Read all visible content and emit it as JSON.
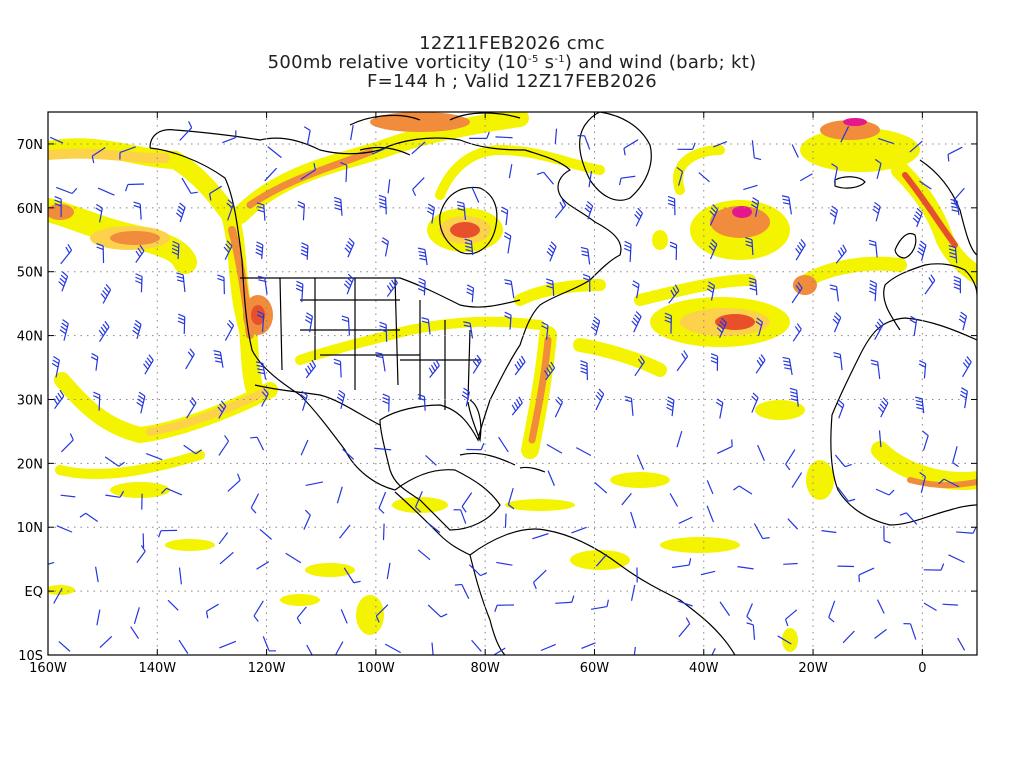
{
  "title": {
    "line1": "12Z11FEB2026 cmc",
    "line2_pre": "500mb relative vorticity (10",
    "line2_exp1": "-5",
    "line2_mid": " s",
    "line2_exp2": "-1",
    "line2_post": ") and wind (barb; kt)",
    "line3": "F=144 h ; Valid 12Z17FEB2026"
  },
  "map": {
    "lon_range": [
      -160,
      10
    ],
    "lat_range": [
      -10,
      75
    ],
    "lat_ticks": [
      {
        "value": 70,
        "label": "70N"
      },
      {
        "value": 60,
        "label": "60N"
      },
      {
        "value": 50,
        "label": "50N"
      },
      {
        "value": 40,
        "label": "40N"
      },
      {
        "value": 30,
        "label": "30N"
      },
      {
        "value": 20,
        "label": "20N"
      },
      {
        "value": 10,
        "label": "10N"
      },
      {
        "value": 0,
        "label": "EQ"
      },
      {
        "value": -10,
        "label": "10S"
      }
    ],
    "lon_ticks": [
      {
        "value": -160,
        "label": "160W"
      },
      {
        "value": -140,
        "label": "140W"
      },
      {
        "value": -120,
        "label": "120W"
      },
      {
        "value": -100,
        "label": "100W"
      },
      {
        "value": -80,
        "label": "80W"
      },
      {
        "value": -60,
        "label": "60W"
      },
      {
        "value": -40,
        "label": "40W"
      },
      {
        "value": -20,
        "label": "20W"
      },
      {
        "value": 0,
        "label": "0"
      }
    ],
    "colors": {
      "low": "#f4f300",
      "mid": "#fcd24a",
      "high": "#f08c3c",
      "higher": "#e8502c",
      "max": "#e6168c",
      "barb": "#2436e0",
      "coast": "#000000",
      "grid": "#888888"
    }
  }
}
